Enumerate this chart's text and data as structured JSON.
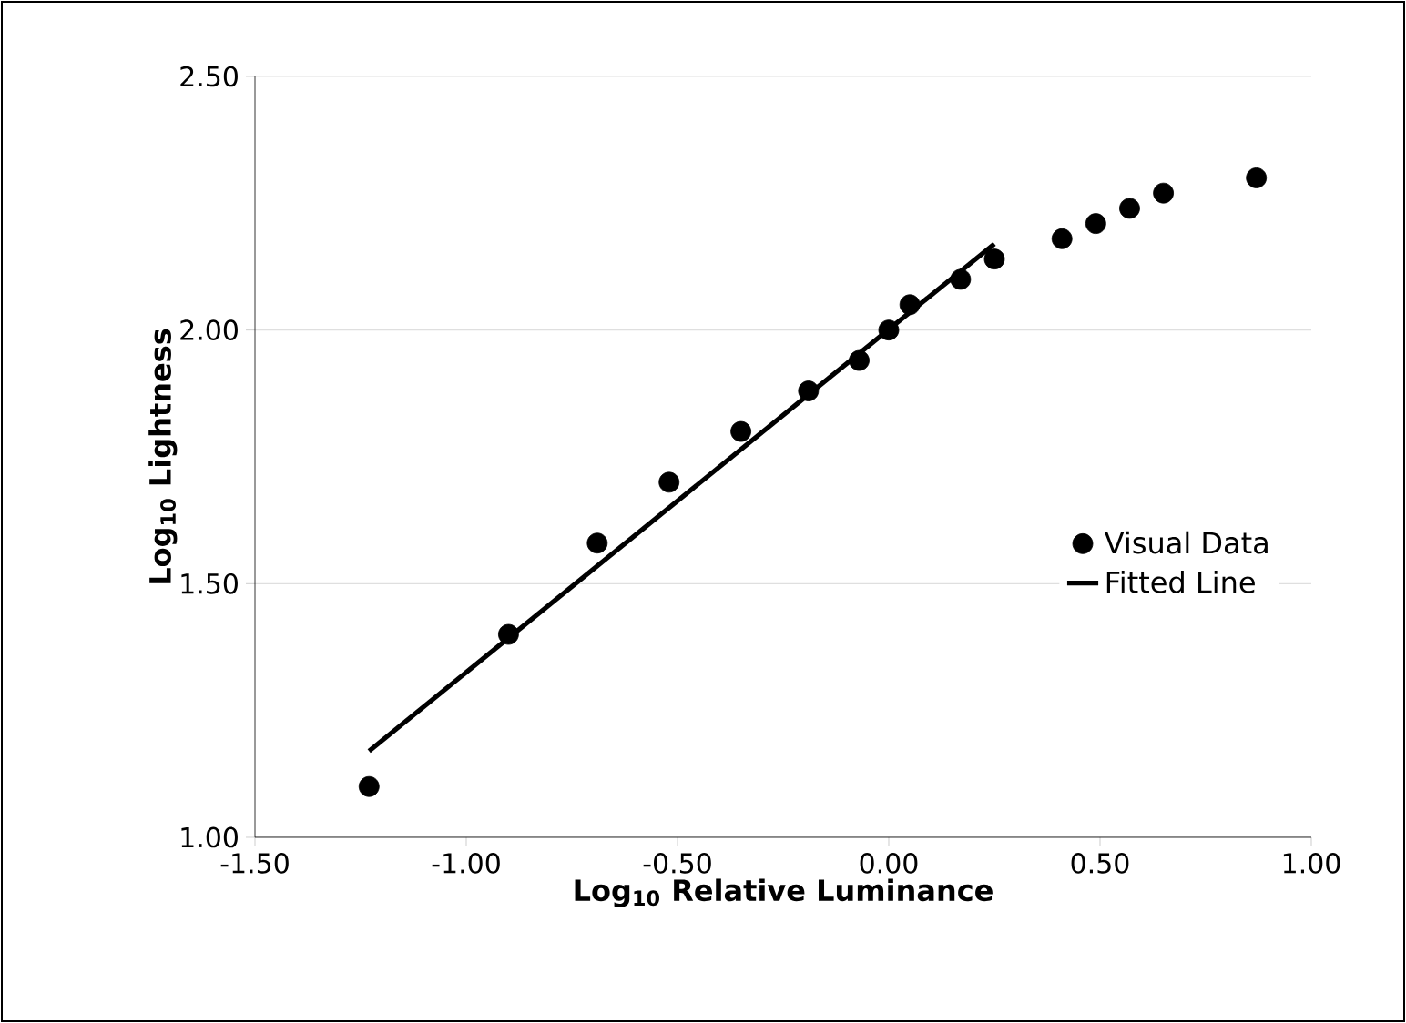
{
  "chart_data": {
    "type": "scatter",
    "xlabel": "Log$_{10}$ Relative Luminance",
    "ylabel": "Log$_{10}$ Lightness",
    "xlim": [
      -1.5,
      1.0
    ],
    "ylim": [
      1.0,
      2.5
    ],
    "xticks": [
      {
        "value": -1.5,
        "label": "-1.50"
      },
      {
        "value": -1.0,
        "label": "-1.00"
      },
      {
        "value": -0.5,
        "label": "-0.50"
      },
      {
        "value": 0,
        "label": "0.00"
      },
      {
        "value": 0.5,
        "label": "0.50"
      },
      {
        "value": 1.0,
        "label": "1.00"
      }
    ],
    "yticks": [
      {
        "value": 1.0,
        "label": "1.00"
      },
      {
        "value": 1.5,
        "label": "1.50"
      },
      {
        "value": 2.0,
        "label": "2.00"
      },
      {
        "value": 2.5,
        "label": "2.50"
      }
    ],
    "grid": "y",
    "legend": "right",
    "series": [
      {
        "name": "Visual Data",
        "marker": "circle",
        "color": "#000000",
        "x": [
          -1.23,
          -0.9,
          -0.69,
          -0.52,
          -0.35,
          -0.19,
          -0.07,
          0.0,
          0.05,
          0.17,
          0.25,
          0.41,
          0.49,
          0.57,
          0.65,
          0.87
        ],
        "values": [
          1.1,
          1.4,
          1.58,
          1.7,
          1.8,
          1.88,
          1.94,
          2.0,
          2.05,
          2.1,
          2.14,
          2.18,
          2.21,
          2.24,
          2.27,
          2.3
        ]
      },
      {
        "name": "Fitted Line",
        "type": "line",
        "marker": "none",
        "color": "#000000",
        "x": [
          -1.23,
          0.25
        ],
        "values": [
          1.17,
          2.17
        ]
      }
    ]
  }
}
